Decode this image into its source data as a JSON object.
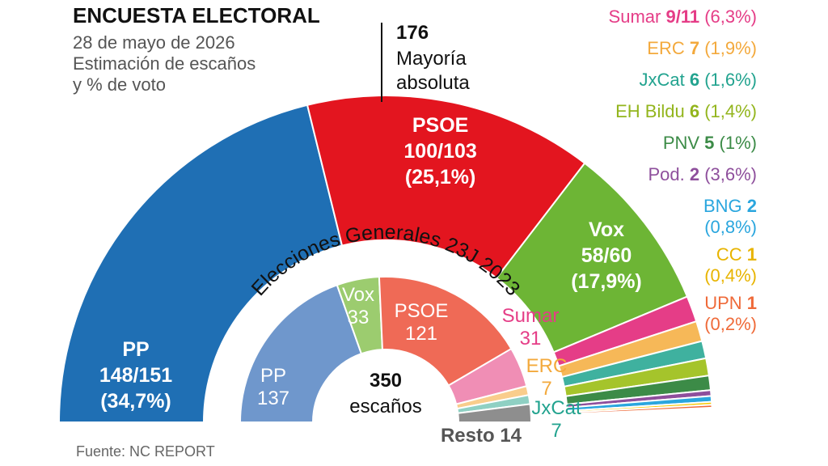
{
  "header": {
    "title": "ENCUESTA ELECTORAL",
    "subtitle_lines": [
      "28 de mayo de 2026",
      "Estimación de escaños",
      "y % de voto"
    ]
  },
  "source": "Fuente: NC REPORT",
  "chart_data": [
    {
      "type": "pie",
      "title": "ENCUESTA ELECTORAL",
      "total_seats": 350,
      "majority": {
        "value": "176",
        "label_lines": [
          "Mayoría",
          "absoluta"
        ]
      },
      "series": [
        {
          "name": "PP",
          "seats": 148,
          "label_lines": [
            "PP",
            "148/151",
            "(34,7%)"
          ],
          "color": "#1f6fb4"
        },
        {
          "name": "PSOE",
          "seats": 100,
          "label_lines": [
            "PSOE",
            "100/103",
            "(25,1%)"
          ],
          "color": "#e3151f"
        },
        {
          "name": "Vox",
          "seats": 58,
          "label_lines": [
            "Vox",
            "58/60",
            "(17,9%)"
          ],
          "color": "#6db535"
        },
        {
          "name": "Sumar",
          "seats": 9,
          "color": "#e53d87"
        },
        {
          "name": "ERC",
          "seats": 7,
          "color": "#f6b858"
        },
        {
          "name": "JxCat",
          "seats": 6,
          "color": "#3fb19f"
        },
        {
          "name": "EH Bildu",
          "seats": 6,
          "color": "#a5c42b"
        },
        {
          "name": "PNV",
          "seats": 5,
          "color": "#3c8b47"
        },
        {
          "name": "Pod.",
          "seats": 2,
          "color": "#8e4f9c"
        },
        {
          "name": "BNG",
          "seats": 2,
          "color": "#2aa6de"
        },
        {
          "name": "CC",
          "seats": 1,
          "color": "#f7c800"
        },
        {
          "name": "UPN",
          "seats": 1,
          "color": "#ef6a39"
        }
      ],
      "legend": [
        {
          "party": "Sumar",
          "seats": "9/11",
          "pct": "(6,3%)",
          "color": "#e53d87"
        },
        {
          "party": "ERC",
          "seats": "7",
          "pct": "(1,9%)",
          "color": "#f3a93c"
        },
        {
          "party": "JxCat",
          "seats": "6",
          "pct": "(1,6%)",
          "color": "#22a38f"
        },
        {
          "party": "EH Bildu",
          "seats": "6",
          "pct": "(1,4%)",
          "color": "#93b51d"
        },
        {
          "party": "PNV",
          "seats": "5",
          "pct": "(1%)",
          "color": "#3c8b47"
        },
        {
          "party": "Pod.",
          "seats": "2",
          "pct": "(3,6%)",
          "color": "#8e4f9c"
        },
        {
          "party": "BNG",
          "seats": "2",
          "pct": "(0,8%)",
          "color": "#2aa6de",
          "wrap": true
        },
        {
          "party": "CC",
          "seats": "1",
          "pct": "(0,4%)",
          "color": "#e8b400",
          "wrap": true
        },
        {
          "party": "UPN",
          "seats": "1",
          "pct": "(0,2%)",
          "color": "#ef6a39",
          "wrap": true
        }
      ]
    },
    {
      "type": "pie",
      "title": "Elecciones Generales 23J 2023",
      "total_seats": 350,
      "center_value": "350",
      "center_label": "escaños",
      "series": [
        {
          "name": "PP",
          "seats": 137,
          "label_lines": [
            "PP",
            "137"
          ],
          "color": "#6f97cc",
          "label_color": "#ffffff"
        },
        {
          "name": "Vox",
          "seats": 33,
          "label_lines": [
            "Vox",
            "33"
          ],
          "color": "#9ccc6f",
          "label_color": "#ffffff"
        },
        {
          "name": "PSOE",
          "seats": 121,
          "label_lines": [
            "PSOE",
            "121"
          ],
          "color": "#ef6a56",
          "label_color": "#ffffff"
        },
        {
          "name": "Sumar",
          "seats": 31,
          "label_lines": [
            "Sumar",
            "31"
          ],
          "color": "#f08eb5",
          "label_color": "#e53d87"
        },
        {
          "name": "ERC",
          "seats": 7,
          "label_lines": [
            "ERC",
            "7"
          ],
          "color": "#f9cd8c",
          "label_color": "#f3a93c"
        },
        {
          "name": "JxCat",
          "seats": 7,
          "label_lines": [
            "JxCat",
            "7"
          ],
          "color": "#8fd0c3",
          "label_color": "#22a38f"
        },
        {
          "name": "Resto",
          "seats": 14,
          "label_lines": [
            "Resto 14"
          ],
          "color": "#8e8e8e",
          "label_color": "#555555"
        }
      ]
    }
  ]
}
